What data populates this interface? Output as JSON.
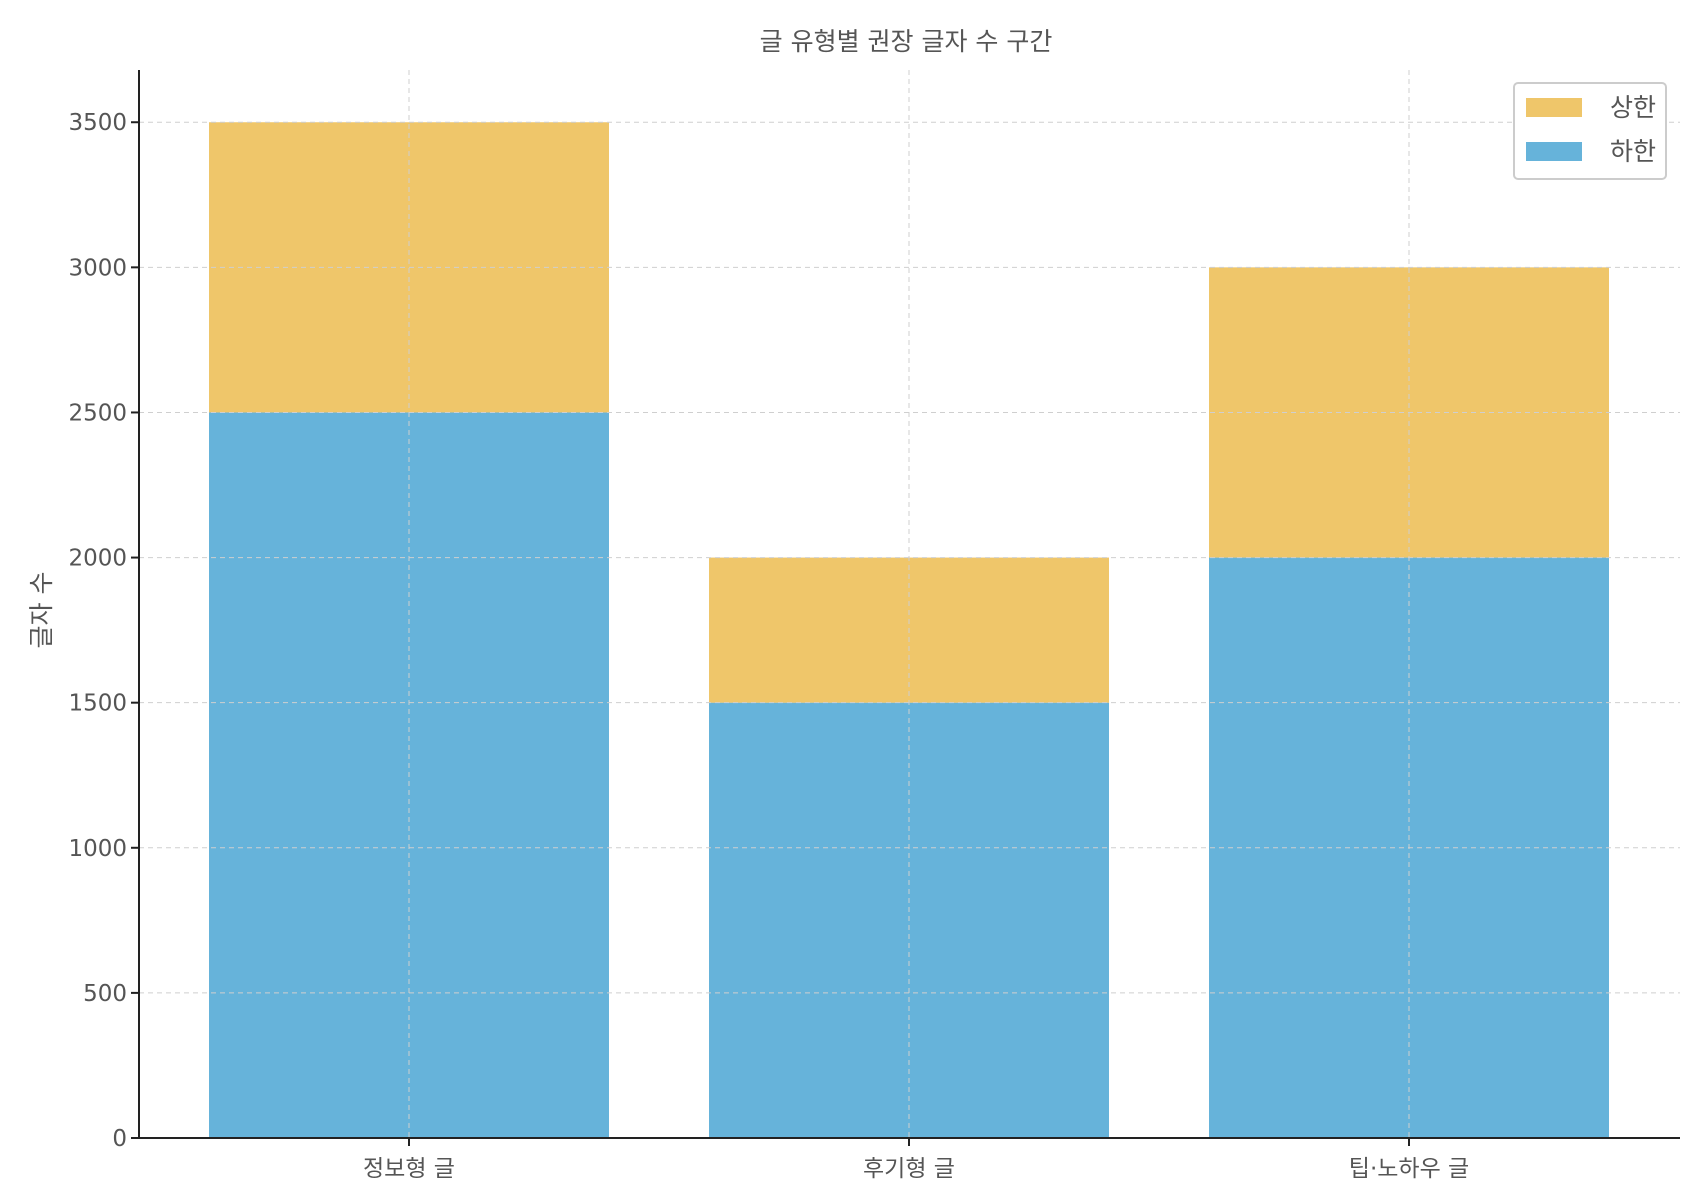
{
  "chart_data": {
    "type": "bar",
    "stacked": true,
    "title": "글 유형별 권장 글자 수 구간",
    "xlabel": "",
    "ylabel": "글자 수",
    "categories": [
      "정보형 글",
      "후기형 글",
      "팁·노하우 글"
    ],
    "series": [
      {
        "name": "하한",
        "values": [
          2500,
          1500,
          2000
        ],
        "color": "#66b3da"
      },
      {
        "name": "상한",
        "values": [
          1000,
          500,
          1000
        ],
        "color": "#efc66a"
      }
    ],
    "ylim": [
      0,
      3680
    ],
    "yticks": [
      0,
      500,
      1000,
      1500,
      2000,
      2500,
      3000,
      3500
    ],
    "grid": true,
    "legend": {
      "position": "top-right",
      "entries": [
        {
          "label": "상한",
          "color": "#efc66a"
        },
        {
          "label": "하한",
          "color": "#66b3da"
        }
      ]
    }
  }
}
